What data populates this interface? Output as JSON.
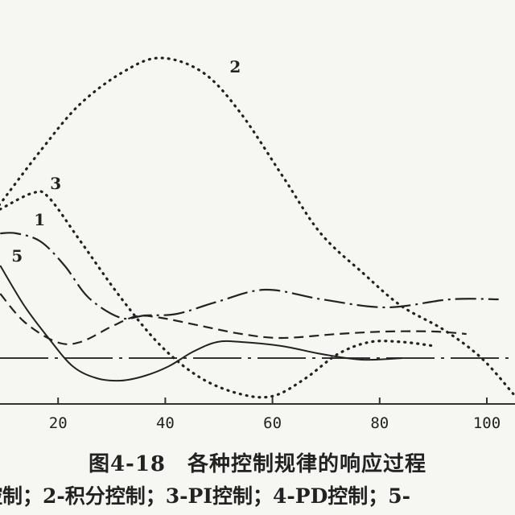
{
  "chart_data": {
    "type": "line",
    "title": "图4-18　各种控制规律的响应过程",
    "subtitle": "控制；2-积分控制；3-PI控制；4-PD控制；5-",
    "xlabel": "",
    "ylabel": "",
    "x_ticks": [
      "20",
      "40",
      "60",
      "80",
      "100"
    ],
    "xlim": [
      9,
      105
    ],
    "ylim": [
      -6,
      40
    ],
    "grid": false,
    "baseline": 0,
    "series": [
      {
        "label": "2",
        "style": "dotted",
        "x": [
          9,
          17,
          24,
          32,
          39,
          47,
          54,
          62,
          69,
          77,
          84,
          92,
          99,
          105
        ],
        "y": [
          19,
          26,
          31.5,
          35.5,
          37.3,
          35.5,
          30.5,
          22.5,
          15.5,
          10.5,
          6.5,
          3.5,
          0,
          -4.5
        ]
      },
      {
        "label": "3",
        "style": "dotted",
        "x": [
          9.2,
          15.2,
          18.2,
          24.2,
          31.7,
          39.2,
          46.7,
          54.2,
          60.2,
          66.2,
          72.2,
          78.2,
          84.2,
          90.2
        ],
        "y": [
          18.5,
          20.5,
          20,
          14.5,
          7.5,
          1.5,
          -2.5,
          -4.5,
          -4.7,
          -2.5,
          0.5,
          2,
          2,
          1.5
        ]
      },
      {
        "label": "1",
        "style": "dashdot",
        "x": [
          9.2,
          12.2,
          16.7,
          21.2,
          25.7,
          31.7,
          36.2,
          42.2,
          49.7,
          58.7,
          69.2,
          81.2,
          93.2,
          102.2
        ],
        "y": [
          15.5,
          15.5,
          14.5,
          11.5,
          7.5,
          5,
          5.3,
          5.5,
          7,
          8.5,
          7.3,
          6.3,
          7.3,
          7.3
        ]
      },
      {
        "label": "4",
        "style": "dashed",
        "x": [
          9.2,
          13.7,
          19.7,
          24.2,
          30.2,
          34.7,
          39.2,
          46.7,
          54.2,
          61.7,
          72.2,
          81.2,
          90.2,
          96.2
        ],
        "y": [
          8,
          4.5,
          2,
          2,
          4,
          5.2,
          5,
          4,
          3,
          2.5,
          3,
          3.3,
          3.3,
          3
        ]
      },
      {
        "label": "5",
        "style": "solid",
        "x": [
          9.2,
          13.7,
          18.2,
          22.7,
          27.2,
          31.7,
          36.2,
          40.7,
          45.2,
          49.7,
          54.2,
          61.7,
          69.2,
          76.7,
          84.2
        ],
        "y": [
          11.5,
          6.5,
          2.5,
          -1,
          -2.5,
          -2.8,
          -2.2,
          -1,
          0.8,
          2,
          2,
          1.5,
          0.5,
          -0.2,
          0
        ]
      }
    ],
    "curve_labels": [
      {
        "text": "2",
        "x": 52,
        "y": 35.5
      },
      {
        "text": "3",
        "x": 18.5,
        "y": 21
      },
      {
        "text": "1",
        "x": 15.5,
        "y": 16.5
      },
      {
        "text": "5",
        "x": 11.3,
        "y": 12
      }
    ]
  }
}
